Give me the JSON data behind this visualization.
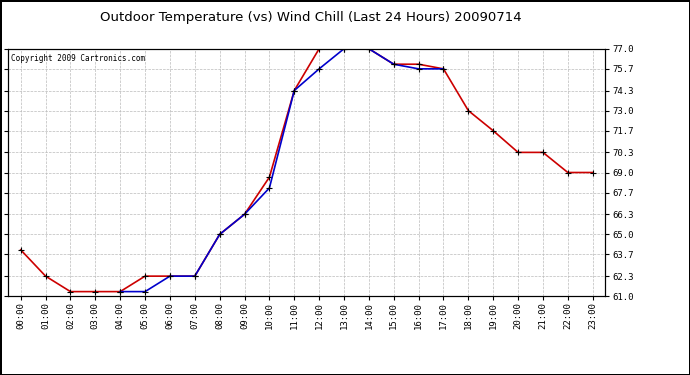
{
  "title": "Outdoor Temperature (vs) Wind Chill (Last 24 Hours) 20090714",
  "copyright": "Copyright 2009 Cartronics.com",
  "x_labels": [
    "00:00",
    "01:00",
    "02:00",
    "03:00",
    "04:00",
    "05:00",
    "06:00",
    "07:00",
    "08:00",
    "09:00",
    "10:00",
    "11:00",
    "12:00",
    "13:00",
    "14:00",
    "15:00",
    "16:00",
    "17:00",
    "18:00",
    "19:00",
    "20:00",
    "21:00",
    "22:00",
    "23:00"
  ],
  "temp_red": [
    64.0,
    62.3,
    61.3,
    61.3,
    61.3,
    62.3,
    62.3,
    62.3,
    65.0,
    66.3,
    68.7,
    74.3,
    77.0,
    77.0,
    77.0,
    76.0,
    76.0,
    75.7,
    73.0,
    71.7,
    70.3,
    70.3,
    69.0,
    69.0
  ],
  "temp_blue": [
    null,
    null,
    null,
    null,
    61.3,
    61.3,
    62.3,
    62.3,
    65.0,
    66.3,
    68.0,
    74.3,
    75.7,
    77.0,
    77.0,
    76.0,
    75.7,
    75.7,
    null,
    null,
    null,
    null,
    null,
    null
  ],
  "ylim": [
    61.0,
    77.0
  ],
  "yticks": [
    61.0,
    62.3,
    63.7,
    65.0,
    66.3,
    67.7,
    69.0,
    70.3,
    71.7,
    73.0,
    74.3,
    75.7,
    77.0
  ],
  "red_color": "#cc0000",
  "blue_color": "#0000cc",
  "bg_color": "#ffffff",
  "plot_bg": "#ffffff",
  "grid_color": "#bbbbbb",
  "border_color": "#000000"
}
